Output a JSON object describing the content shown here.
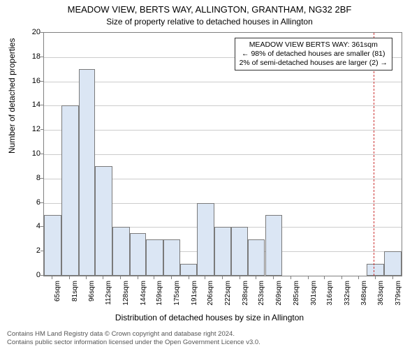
{
  "title_main": "MEADOW VIEW, BERTS WAY, ALLINGTON, GRANTHAM, NG32 2BF",
  "title_sub": "Size of property relative to detached houses in Allington",
  "ylabel": "Number of detached properties",
  "xlabel": "Distribution of detached houses by size in Allington",
  "footer_line1": "Contains HM Land Registry data © Crown copyright and database right 2024.",
  "footer_line2": "Contains public sector information licensed under the Open Government Licence v3.0.",
  "annotation": {
    "line1": "MEADOW VIEW BERTS WAY: 361sqm",
    "line2": "← 98% of detached houses are smaller (81)",
    "line3": "2% of semi-detached houses are larger (2) →"
  },
  "chart": {
    "type": "histogram",
    "ylim": [
      0,
      20
    ],
    "yticks": [
      0,
      2,
      4,
      6,
      8,
      10,
      12,
      14,
      16,
      18,
      20
    ],
    "grid_color": "#cccccc",
    "border_color": "#808080",
    "bar_fill": "#dbe6f4",
    "bar_border": "#7a7a7a",
    "marker_color": "#cc3333",
    "background_color": "#ffffff",
    "title_fontsize": 13,
    "sub_fontsize": 12,
    "label_fontsize": 12,
    "tick_fontsize": 11,
    "xtick_fontsize": 10,
    "annotation_fontsize": 10.5,
    "footer_fontsize": 9.5,
    "x_tick_labels": [
      "65sqm",
      "81sqm",
      "96sqm",
      "112sqm",
      "128sqm",
      "144sqm",
      "159sqm",
      "175sqm",
      "191sqm",
      "206sqm",
      "222sqm",
      "238sqm",
      "253sqm",
      "269sqm",
      "285sqm",
      "301sqm",
      "316sqm",
      "332sqm",
      "348sqm",
      "363sqm",
      "379sqm"
    ],
    "x_tick_positions": [
      65,
      81,
      96,
      112,
      128,
      144,
      159,
      175,
      191,
      206,
      222,
      238,
      253,
      269,
      285,
      301,
      316,
      332,
      348,
      363,
      379
    ],
    "xlim": [
      57,
      387
    ],
    "marker_x": 361,
    "bars": [
      {
        "x0": 57,
        "x1": 73,
        "h": 5
      },
      {
        "x0": 73,
        "x1": 89,
        "h": 14
      },
      {
        "x0": 89,
        "x1": 104,
        "h": 17
      },
      {
        "x0": 104,
        "x1": 120,
        "h": 9
      },
      {
        "x0": 120,
        "x1": 136,
        "h": 4
      },
      {
        "x0": 136,
        "x1": 151,
        "h": 3.5
      },
      {
        "x0": 151,
        "x1": 167,
        "h": 3
      },
      {
        "x0": 167,
        "x1": 183,
        "h": 3
      },
      {
        "x0": 183,
        "x1": 198,
        "h": 1
      },
      {
        "x0": 198,
        "x1": 214,
        "h": 6
      },
      {
        "x0": 214,
        "x1": 230,
        "h": 4
      },
      {
        "x0": 230,
        "x1": 245,
        "h": 4
      },
      {
        "x0": 245,
        "x1": 261,
        "h": 3
      },
      {
        "x0": 261,
        "x1": 277,
        "h": 5
      },
      {
        "x0": 277,
        "x1": 292,
        "h": 0
      },
      {
        "x0": 292,
        "x1": 308,
        "h": 0
      },
      {
        "x0": 308,
        "x1": 324,
        "h": 0
      },
      {
        "x0": 324,
        "x1": 340,
        "h": 0
      },
      {
        "x0": 340,
        "x1": 355,
        "h": 0
      },
      {
        "x0": 355,
        "x1": 371,
        "h": 1
      },
      {
        "x0": 371,
        "x1": 387,
        "h": 2
      }
    ]
  }
}
